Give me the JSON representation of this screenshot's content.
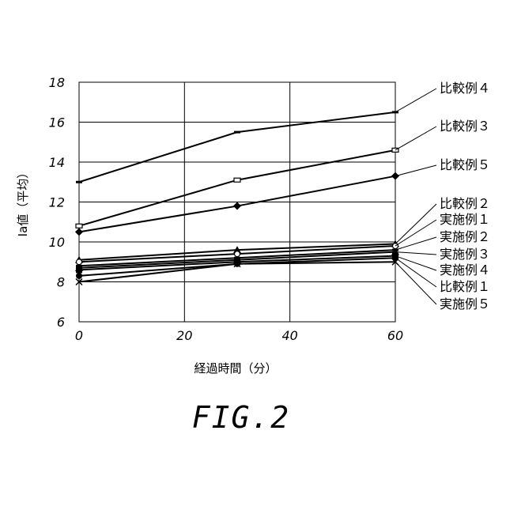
{
  "chart_data": {
    "type": "line",
    "title": "",
    "xlabel": "経過時間（分）",
    "ylabel": "Ia値（平均）",
    "xlim": [
      0,
      60
    ],
    "ylim": [
      6,
      18
    ],
    "x_ticks": [
      "0",
      "20",
      "40",
      "60"
    ],
    "y_ticks": [
      "6",
      "8",
      "10",
      "12",
      "14",
      "16",
      "18"
    ],
    "grid": true,
    "legend": "right",
    "series": [
      {
        "name": "比較例４",
        "x": [
          0,
          30,
          60
        ],
        "values": [
          13.0,
          15.5,
          16.5
        ],
        "marker": "dash"
      },
      {
        "name": "比較例３",
        "x": [
          0,
          30,
          60
        ],
        "values": [
          10.8,
          13.1,
          14.6
        ],
        "marker": "square-open"
      },
      {
        "name": "比較例５",
        "x": [
          0,
          30,
          60
        ],
        "values": [
          10.5,
          11.8,
          13.3
        ],
        "marker": "diamond"
      },
      {
        "name": "比較例２",
        "x": [
          0,
          30,
          60
        ],
        "values": [
          9.1,
          9.6,
          9.9
        ],
        "marker": "triangle"
      },
      {
        "name": "実施例１",
        "x": [
          0,
          30,
          60
        ],
        "values": [
          9.0,
          9.4,
          9.8
        ],
        "marker": "circle-open"
      },
      {
        "name": "実施例２",
        "x": [
          0,
          30,
          60
        ],
        "values": [
          8.8,
          9.2,
          9.6
        ],
        "marker": "dash"
      },
      {
        "name": "実施例３",
        "x": [
          0,
          30,
          60
        ],
        "values": [
          8.7,
          9.1,
          9.5
        ],
        "marker": "triangle"
      },
      {
        "name": "実施例４",
        "x": [
          0,
          30,
          60
        ],
        "values": [
          8.6,
          9.0,
          9.3
        ],
        "marker": "square"
      },
      {
        "name": "比較例１",
        "x": [
          0,
          30,
          60
        ],
        "values": [
          8.3,
          8.9,
          9.2
        ],
        "marker": "circle"
      },
      {
        "name": "実施例５",
        "x": [
          0,
          30,
          60
        ],
        "values": [
          8.0,
          8.9,
          9.0
        ],
        "marker": "x"
      }
    ]
  },
  "caption": "FIG.2"
}
